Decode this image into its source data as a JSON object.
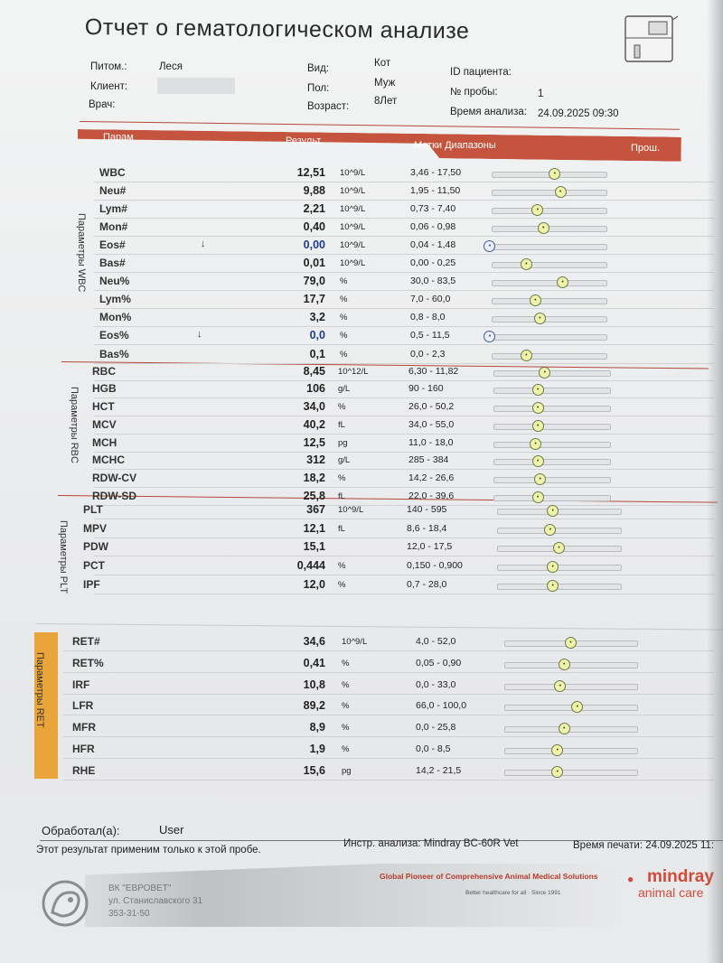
{
  "title": "Отчет о гематологическом анализе",
  "info": {
    "pet_label": "Питом.:",
    "pet_value": "Леся",
    "client_label": "Клиент:",
    "doctor_label": "Врач:",
    "species_label": "Вид:",
    "species_value": "Кот",
    "sex_label": "Пол:",
    "sex_value": "Муж",
    "age_label": "Возраст:",
    "age_value": "8Лет",
    "patient_id_label": "ID пациента:",
    "sample_no_label": "№ пробы:",
    "sample_no_value": "1",
    "analysis_time_label": "Время анализа:",
    "analysis_time_value": "24.09.2025 09:30"
  },
  "header": {
    "param": "Парам",
    "result": "Результ",
    "flags_ranges": "Метки Диапазоны",
    "prev": "Прош."
  },
  "groups": {
    "wbc": "Параметры WBC",
    "rbc": "Параметры RBC",
    "plt": "Параметры PLT",
    "ret": "Параметры RET"
  },
  "rows": [
    {
      "param": "WBC",
      "value": "12,51",
      "unit": "10^9/L",
      "range": "3,46 - 17,50",
      "flag": "",
      "pos": 0.55
    },
    {
      "param": "Neu#",
      "value": "9,88",
      "unit": "10^9/L",
      "range": "1,95 - 11,50",
      "flag": "",
      "pos": 0.6
    },
    {
      "param": "Lym#",
      "value": "2,21",
      "unit": "10^9/L",
      "range": "0,73 - 7,40",
      "flag": "",
      "pos": 0.4
    },
    {
      "param": "Mon#",
      "value": "0,40",
      "unit": "10^9/L",
      "range": "0,06 - 0,98",
      "flag": "",
      "pos": 0.45
    },
    {
      "param": "Eos#",
      "value": "0,00",
      "unit": "10^9/L",
      "range": "0,04 - 1,48",
      "flag": "↓",
      "pos": -0.02,
      "low": true
    },
    {
      "param": "Bas#",
      "value": "0,01",
      "unit": "10^9/L",
      "range": "0,00 - 0,25",
      "flag": "",
      "pos": 0.3
    },
    {
      "param": "Neu%",
      "value": "79,0",
      "unit": "%",
      "range": "30,0 - 83,5",
      "flag": "",
      "pos": 0.62
    },
    {
      "param": "Lym%",
      "value": "17,7",
      "unit": "%",
      "range": "7,0 - 60,0",
      "flag": "",
      "pos": 0.38
    },
    {
      "param": "Mon%",
      "value": "3,2",
      "unit": "%",
      "range": "0,8 - 8,0",
      "flag": "",
      "pos": 0.42
    },
    {
      "param": "Eos%",
      "value": "0,0",
      "unit": "%",
      "range": "0,5 - 11,5",
      "flag": "↓",
      "pos": -0.02,
      "low": true
    },
    {
      "param": "Bas%",
      "value": "0,1",
      "unit": "%",
      "range": "0,0 - 2,3",
      "flag": "",
      "pos": 0.3
    },
    {
      "param": "RBC",
      "value": "8,45",
      "unit": "10^12/L",
      "range": "6,30 - 11,82",
      "flag": "",
      "pos": 0.44
    },
    {
      "param": "HGB",
      "value": "106",
      "unit": "g/L",
      "range": "90 - 160",
      "flag": "",
      "pos": 0.38
    },
    {
      "param": "HCT",
      "value": "34,0",
      "unit": "%",
      "range": "26,0 - 50,2",
      "flag": "",
      "pos": 0.38
    },
    {
      "param": "MCV",
      "value": "40,2",
      "unit": "fL",
      "range": "34,0 - 55,0",
      "flag": "",
      "pos": 0.38
    },
    {
      "param": "MCH",
      "value": "12,5",
      "unit": "pg",
      "range": "11,0 - 18,0",
      "flag": "",
      "pos": 0.36
    },
    {
      "param": "MCHC",
      "value": "312",
      "unit": "g/L",
      "range": "285 - 384",
      "flag": "",
      "pos": 0.38
    },
    {
      "param": "RDW-CV",
      "value": "18,2",
      "unit": "%",
      "range": "14,2 - 26,6",
      "flag": "",
      "pos": 0.4
    },
    {
      "param": "RDW-SD",
      "value": "25,8",
      "unit": "fL",
      "range": "22,0 - 39,6",
      "flag": "",
      "pos": 0.38
    },
    {
      "param": "PLT",
      "value": "367",
      "unit": "10^9/L",
      "range": "140 - 595",
      "flag": "",
      "pos": 0.45
    },
    {
      "param": "MPV",
      "value": "12,1",
      "unit": "fL",
      "range": "8,6 - 18,4",
      "flag": "",
      "pos": 0.43
    },
    {
      "param": "PDW",
      "value": "15,1",
      "unit": "",
      "range": "12,0 - 17,5",
      "flag": "",
      "pos": 0.5
    },
    {
      "param": "PCT",
      "value": "0,444",
      "unit": "%",
      "range": "0,150 - 0,900",
      "flag": "",
      "pos": 0.45
    },
    {
      "param": "IPF",
      "value": "12,0",
      "unit": "%",
      "range": "0,7 - 28,0",
      "flag": "",
      "pos": 0.45
    },
    {
      "param": "RET#",
      "value": "34,6",
      "unit": "10^9/L",
      "range": "4,0 - 52,0",
      "flag": "",
      "pos": 0.5
    },
    {
      "param": "RET%",
      "value": "0,41",
      "unit": "%",
      "range": "0,05 - 0,90",
      "flag": "",
      "pos": 0.45
    },
    {
      "param": "IRF",
      "value": "10,8",
      "unit": "%",
      "range": "0,0 - 33,0",
      "flag": "",
      "pos": 0.42
    },
    {
      "param": "LFR",
      "value": "89,2",
      "unit": "%",
      "range": "66,0 - 100,0",
      "flag": "",
      "pos": 0.55
    },
    {
      "param": "MFR",
      "value": "8,9",
      "unit": "%",
      "range": "0,0 - 25,8",
      "flag": "",
      "pos": 0.45
    },
    {
      "param": "HFR",
      "value": "1,9",
      "unit": "%",
      "range": "0,0 - 8,5",
      "flag": "",
      "pos": 0.4
    },
    {
      "param": "RHE",
      "value": "15,6",
      "unit": "pg",
      "range": "14,2 - 21,5",
      "flag": "",
      "pos": 0.4
    }
  ],
  "footer": {
    "processed_label": "Обработал(а):",
    "processed_value": "User",
    "disclaimer": "Этот результат применим только к этой пробе.",
    "instrument": "Инстр. анализа: Mindray BC-60R Vet",
    "print_time": "Время печати: 24.09.2025 11:",
    "clinic_name": "ВК \"ЕВРОВЕТ\"",
    "clinic_address": "ул. Станиславского 31",
    "clinic_phone": "353-31-50",
    "slogan": "Global Pioneer of Comprehensive Animal Medical Solutions",
    "slogan_sub": "Better healthcare for all  ·  Since 1991",
    "brand1": "mindray",
    "brand2": "animal care"
  },
  "colors": {
    "accent_red": "#c4543e",
    "ret_band": "#e9a43a",
    "marker_normal": "#eef3a8",
    "marker_low": "#e9eefa"
  }
}
